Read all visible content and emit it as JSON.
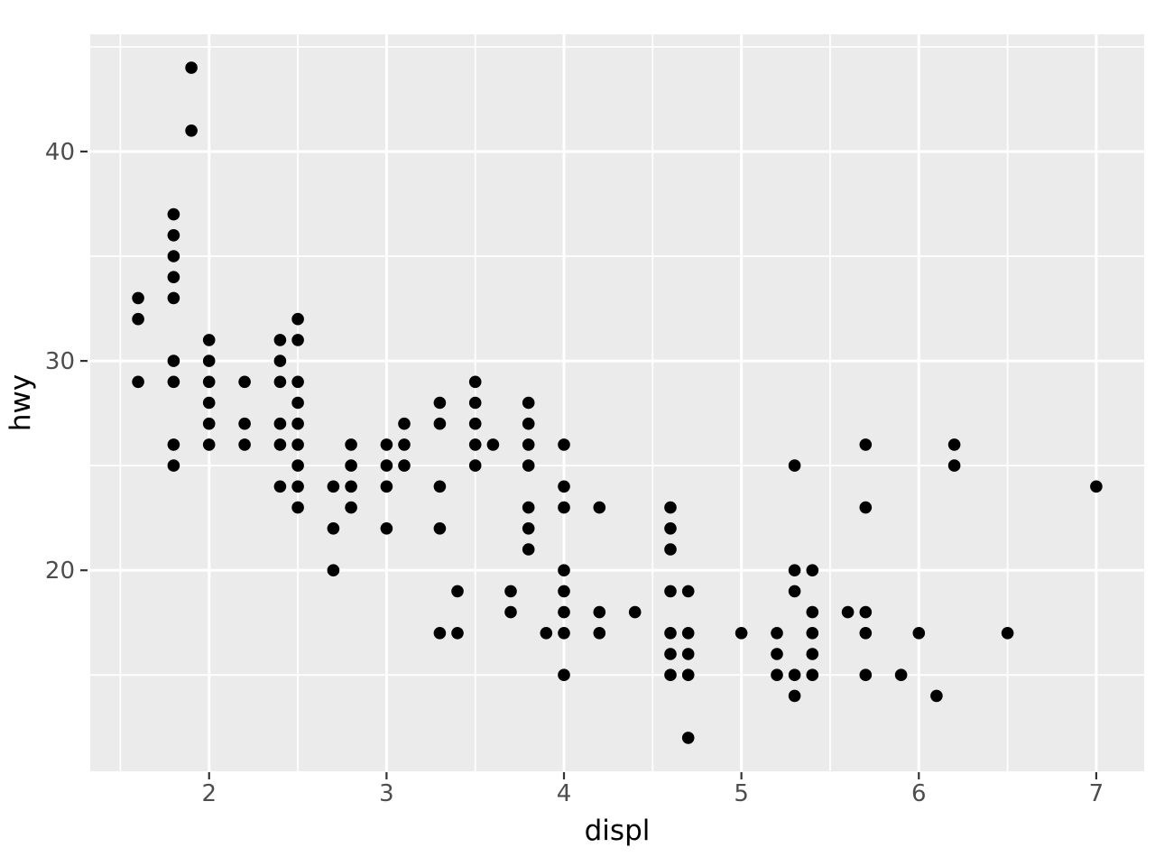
{
  "figure": {
    "kind": "ggplot2-style scatter plot",
    "background": "#FFFFFF"
  },
  "chart_data": {
    "type": "scatter",
    "title": "",
    "xlabel": "displ",
    "ylabel": "hwy",
    "x_ticks": [
      2,
      3,
      4,
      5,
      6,
      7
    ],
    "y_ticks": [
      20,
      30,
      40
    ],
    "x_minor_breaks": [
      1.5,
      2.5,
      3.5,
      4.5,
      5.5,
      6.5
    ],
    "y_minor_breaks": [
      15,
      25,
      35,
      45
    ],
    "xlim": [
      1.33,
      7.27
    ],
    "ylim": [
      10.4,
      45.6
    ],
    "grid": true,
    "legend_position": "none",
    "points": [
      [
        1.6,
        33
      ],
      [
        1.6,
        32
      ],
      [
        1.6,
        29
      ],
      [
        1.8,
        37
      ],
      [
        1.8,
        36
      ],
      [
        1.8,
        35
      ],
      [
        1.8,
        34
      ],
      [
        1.8,
        33
      ],
      [
        1.8,
        30
      ],
      [
        1.8,
        29
      ],
      [
        1.8,
        26
      ],
      [
        1.8,
        25
      ],
      [
        1.9,
        44
      ],
      [
        1.9,
        41
      ],
      [
        2.0,
        31
      ],
      [
        2.0,
        30
      ],
      [
        2.0,
        29
      ],
      [
        2.0,
        28
      ],
      [
        2.0,
        27
      ],
      [
        2.0,
        26
      ],
      [
        2.2,
        29
      ],
      [
        2.2,
        27
      ],
      [
        2.2,
        26
      ],
      [
        2.4,
        31
      ],
      [
        2.4,
        30
      ],
      [
        2.4,
        29
      ],
      [
        2.4,
        27
      ],
      [
        2.4,
        26
      ],
      [
        2.4,
        24
      ],
      [
        2.5,
        32
      ],
      [
        2.5,
        31
      ],
      [
        2.5,
        29
      ],
      [
        2.5,
        28
      ],
      [
        2.5,
        27
      ],
      [
        2.5,
        26
      ],
      [
        2.5,
        25
      ],
      [
        2.5,
        24
      ],
      [
        2.5,
        23
      ],
      [
        2.7,
        24
      ],
      [
        2.7,
        22
      ],
      [
        2.7,
        20
      ],
      [
        2.8,
        26
      ],
      [
        2.8,
        25
      ],
      [
        2.8,
        24
      ],
      [
        2.8,
        23
      ],
      [
        3.0,
        26
      ],
      [
        3.0,
        25
      ],
      [
        3.0,
        24
      ],
      [
        3.0,
        22
      ],
      [
        3.1,
        27
      ],
      [
        3.1,
        26
      ],
      [
        3.1,
        25
      ],
      [
        3.3,
        28
      ],
      [
        3.3,
        27
      ],
      [
        3.3,
        24
      ],
      [
        3.3,
        22
      ],
      [
        3.3,
        17
      ],
      [
        3.4,
        19
      ],
      [
        3.4,
        17
      ],
      [
        3.5,
        29
      ],
      [
        3.5,
        28
      ],
      [
        3.5,
        27
      ],
      [
        3.5,
        26
      ],
      [
        3.5,
        25
      ],
      [
        3.6,
        26
      ],
      [
        3.7,
        19
      ],
      [
        3.7,
        18
      ],
      [
        3.8,
        28
      ],
      [
        3.8,
        27
      ],
      [
        3.8,
        26
      ],
      [
        3.8,
        25
      ],
      [
        3.8,
        23
      ],
      [
        3.8,
        22
      ],
      [
        3.8,
        21
      ],
      [
        3.9,
        17
      ],
      [
        4.0,
        26
      ],
      [
        4.0,
        24
      ],
      [
        4.0,
        23
      ],
      [
        4.0,
        20
      ],
      [
        4.0,
        19
      ],
      [
        4.0,
        18
      ],
      [
        4.0,
        17
      ],
      [
        4.0,
        15
      ],
      [
        4.2,
        23
      ],
      [
        4.2,
        18
      ],
      [
        4.2,
        17
      ],
      [
        4.4,
        18
      ],
      [
        4.6,
        23
      ],
      [
        4.6,
        22
      ],
      [
        4.6,
        21
      ],
      [
        4.6,
        19
      ],
      [
        4.6,
        17
      ],
      [
        4.6,
        16
      ],
      [
        4.6,
        15
      ],
      [
        4.7,
        19
      ],
      [
        4.7,
        17
      ],
      [
        4.7,
        16
      ],
      [
        4.7,
        15
      ],
      [
        4.7,
        12
      ],
      [
        5.0,
        17
      ],
      [
        5.2,
        17
      ],
      [
        5.2,
        16
      ],
      [
        5.2,
        15
      ],
      [
        5.3,
        25
      ],
      [
        5.3,
        20
      ],
      [
        5.3,
        19
      ],
      [
        5.3,
        15
      ],
      [
        5.3,
        14
      ],
      [
        5.4,
        20
      ],
      [
        5.4,
        18
      ],
      [
        5.4,
        17
      ],
      [
        5.4,
        16
      ],
      [
        5.4,
        15
      ],
      [
        5.6,
        18
      ],
      [
        5.7,
        26
      ],
      [
        5.7,
        23
      ],
      [
        5.7,
        18
      ],
      [
        5.7,
        17
      ],
      [
        5.7,
        15
      ],
      [
        5.9,
        15
      ],
      [
        6.0,
        17
      ],
      [
        6.1,
        14
      ],
      [
        6.2,
        26
      ],
      [
        6.2,
        25
      ],
      [
        6.5,
        17
      ],
      [
        7.0,
        24
      ]
    ],
    "colors": {
      "panel_background": "#EBEBEB",
      "grid_line": "#FFFFFF",
      "point": "#000000",
      "tick_label": "#4D4D4D",
      "tick_mark": "#333333",
      "axis_title": "#000000"
    }
  }
}
